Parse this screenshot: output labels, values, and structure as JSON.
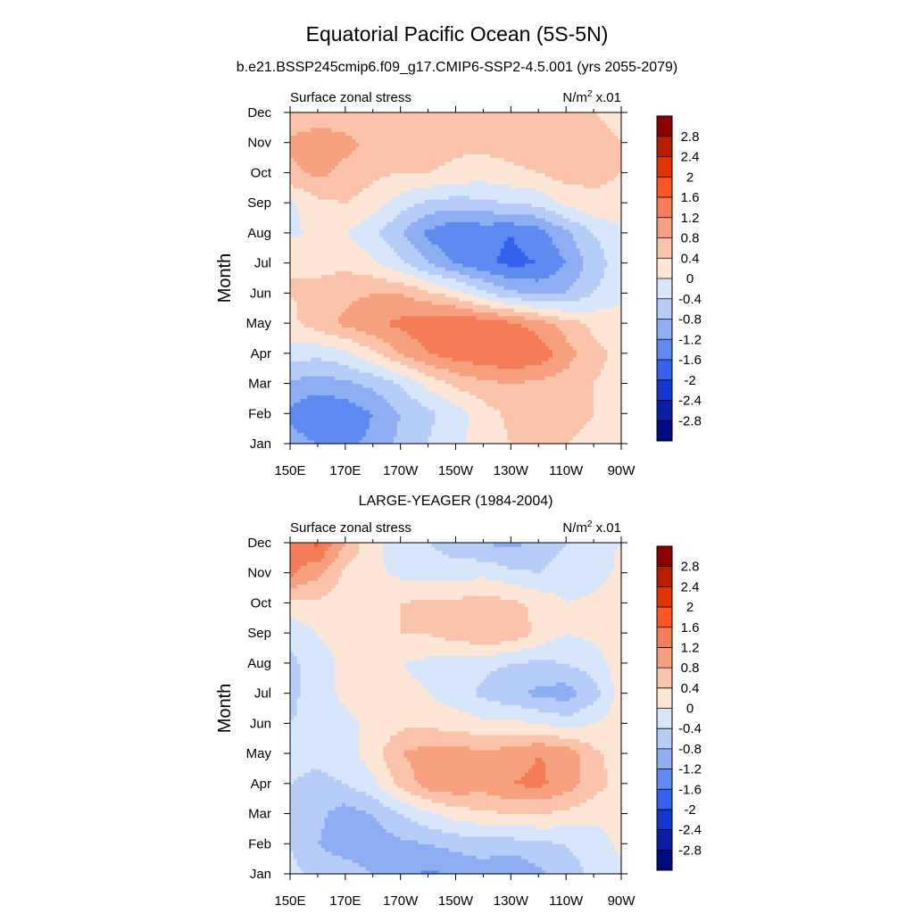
{
  "page": {
    "title": "Equatorial Pacific Ocean (5S-5N)",
    "subtitle": "b.e21.BSSP245cmip6.f09_g17.CMIP6-SSP2-4.5.001 (yrs 2055-2079)"
  },
  "colorbar": {
    "labels": [
      "2.8",
      "2.4",
      "2",
      "1.6",
      "1.2",
      "0.8",
      "0.4",
      "0",
      "-0.4",
      "-0.8",
      "-1.2",
      "-1.6",
      "-2",
      "-2.4",
      "-2.8"
    ],
    "colors": [
      "#8b0000",
      "#b91d00",
      "#e03500",
      "#ff5522",
      "#f47c56",
      "#f7a07f",
      "#fbc4aa",
      "#fde6d6",
      "#d7e6fb",
      "#b6cdf7",
      "#8eaef4",
      "#5f8af0",
      "#3562ec",
      "#1437d0",
      "#0a1fa4",
      "#000b80"
    ],
    "levels": [
      -2.8,
      -2.4,
      -2,
      -1.6,
      -1.2,
      -0.8,
      -0.4,
      0,
      0.4,
      0.8,
      1.2,
      1.6,
      2,
      2.4,
      2.8
    ]
  },
  "chart_data": [
    {
      "type": "heatmap",
      "panel_title": "",
      "left_label": "Surface zonal stress",
      "units": "N/m",
      "units_sup": "2",
      "units_tail": " x.01",
      "xlabel": "",
      "ylabel": "Month",
      "x_ticklabels": [
        "150E",
        "170E",
        "170W",
        "150W",
        "130W",
        "110W",
        "90W"
      ],
      "y_ticklabels": [
        "Jan",
        "Feb",
        "Mar",
        "Apr",
        "May",
        "Jun",
        "Jul",
        "Aug",
        "Sep",
        "Oct",
        "Nov",
        "Dec"
      ],
      "xlim": [
        150,
        270
      ],
      "x_nodes": [
        150,
        160,
        170,
        180,
        190,
        200,
        210,
        220,
        230,
        240,
        250,
        260,
        270
      ],
      "values": [
        [
          -1.0,
          -1.2,
          -1.3,
          -1.1,
          -0.7,
          -0.4,
          -0.1,
          0.2,
          0.4,
          0.5,
          0.4,
          0.3,
          0.2
        ],
        [
          -1.3,
          -1.6,
          -1.5,
          -1.2,
          -0.8,
          -0.5,
          -0.2,
          0.2,
          0.5,
          0.6,
          0.5,
          0.4,
          0.3
        ],
        [
          -0.9,
          -1.0,
          -0.9,
          -0.7,
          -0.4,
          0.1,
          0.5,
          0.7,
          0.8,
          0.7,
          0.6,
          0.4,
          0.3
        ],
        [
          -0.2,
          -0.3,
          -0.1,
          0.3,
          0.8,
          1.2,
          1.4,
          1.5,
          1.6,
          1.5,
          1.0,
          0.5,
          0.3
        ],
        [
          0.3,
          0.6,
          0.9,
          1.1,
          1.3,
          1.5,
          1.6,
          1.5,
          1.3,
          1.0,
          0.6,
          0.3,
          0.2
        ],
        [
          0.4,
          0.5,
          0.7,
          0.8,
          0.8,
          0.5,
          0.2,
          -0.3,
          -0.7,
          -0.9,
          -0.8,
          -0.4,
          -0.1
        ],
        [
          0.4,
          0.3,
          0.3,
          0.1,
          -0.3,
          -0.8,
          -1.2,
          -1.5,
          -1.7,
          -1.6,
          -1.2,
          -0.6,
          -0.2
        ],
        [
          -0.1,
          0.1,
          0.0,
          -0.3,
          -0.8,
          -1.3,
          -1.6,
          -1.5,
          -1.6,
          -1.4,
          -0.9,
          -0.4,
          -0.1
        ],
        [
          -0.1,
          0.3,
          0.4,
          0.2,
          -0.2,
          -0.5,
          -0.6,
          -0.5,
          -0.4,
          -0.3,
          0.1,
          0.3,
          0.3
        ],
        [
          0.7,
          0.9,
          0.7,
          0.5,
          0.4,
          0.4,
          0.3,
          0.2,
          0.3,
          0.4,
          0.6,
          0.5,
          0.4
        ],
        [
          0.9,
          1.0,
          0.9,
          0.7,
          0.6,
          0.6,
          0.5,
          0.5,
          0.6,
          0.6,
          0.5,
          0.5,
          0.4
        ],
        [
          0.5,
          0.6,
          0.6,
          0.5,
          0.5,
          0.4,
          0.4,
          0.4,
          0.5,
          0.5,
          0.4,
          0.4,
          0.3
        ]
      ]
    },
    {
      "type": "heatmap",
      "panel_title": "LARGE-YEAGER (1984-2004)",
      "left_label": "Surface zonal stress",
      "units": "N/m",
      "units_sup": "2",
      "units_tail": " x.01",
      "xlabel": "",
      "ylabel": "Month",
      "x_ticklabels": [
        "150E",
        "170E",
        "170W",
        "150W",
        "130W",
        "110W",
        "90W"
      ],
      "y_ticklabels": [
        "Jan",
        "Feb",
        "Mar",
        "Apr",
        "May",
        "Jun",
        "Jul",
        "Aug",
        "Sep",
        "Oct",
        "Nov",
        "Dec"
      ],
      "xlim": [
        150,
        270
      ],
      "x_nodes": [
        150,
        160,
        170,
        180,
        190,
        200,
        210,
        220,
        230,
        240,
        250,
        260,
        270
      ],
      "values": [
        [
          -0.3,
          -0.5,
          -0.6,
          -0.8,
          -1.0,
          -1.3,
          -1.1,
          -1.0,
          -1.2,
          -0.9,
          -0.6,
          -0.3,
          -0.1
        ],
        [
          -0.4,
          -0.8,
          -1.0,
          -1.0,
          -0.9,
          -0.8,
          -0.7,
          -0.6,
          -0.6,
          -0.5,
          -0.4,
          -0.2,
          0.1
        ],
        [
          -0.4,
          -0.7,
          -1.0,
          -0.8,
          -0.4,
          -0.1,
          0.2,
          0.3,
          0.4,
          0.4,
          0.3,
          0.1,
          0.1
        ],
        [
          -0.4,
          -0.5,
          -0.4,
          -0.1,
          0.5,
          1.0,
          1.1,
          1.0,
          1.2,
          1.3,
          1.0,
          0.6,
          0.2
        ],
        [
          -0.3,
          -0.3,
          -0.2,
          0.2,
          0.8,
          1.0,
          1.0,
          0.9,
          1.0,
          1.2,
          1.1,
          0.5,
          0.2
        ],
        [
          -0.4,
          -0.3,
          -0.1,
          0.1,
          0.3,
          0.3,
          0.2,
          0.1,
          0.1,
          0.0,
          -0.2,
          0.0,
          0.2
        ],
        [
          -0.5,
          -0.2,
          0.1,
          0.2,
          0.1,
          0.0,
          -0.2,
          -0.5,
          -0.7,
          -0.9,
          -1.0,
          -0.6,
          0.2
        ],
        [
          -0.5,
          -0.2,
          0.1,
          0.2,
          0.0,
          -0.1,
          -0.2,
          -0.3,
          -0.4,
          -0.5,
          -0.4,
          -0.2,
          0.2
        ],
        [
          -0.3,
          0.0,
          0.2,
          0.3,
          0.4,
          0.4,
          0.6,
          0.8,
          0.7,
          0.3,
          0.0,
          0.1,
          0.2
        ],
        [
          0.3,
          0.3,
          0.2,
          0.3,
          0.4,
          0.5,
          0.5,
          0.6,
          0.5,
          0.3,
          0.0,
          0.1,
          0.3
        ],
        [
          1.3,
          0.9,
          0.3,
          0.1,
          -0.1,
          -0.2,
          -0.2,
          -0.1,
          -0.3,
          -0.4,
          -0.2,
          -0.2,
          0.1
        ],
        [
          1.3,
          1.7,
          0.8,
          0.1,
          -0.2,
          -0.4,
          -0.6,
          -0.8,
          -0.9,
          -0.7,
          -0.4,
          -0.1,
          0.0
        ]
      ]
    }
  ]
}
